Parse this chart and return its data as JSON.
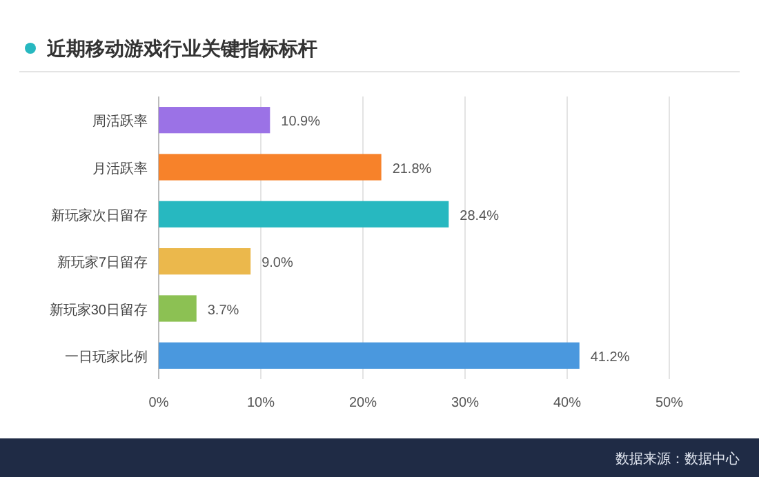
{
  "chart_data": {
    "type": "bar",
    "orientation": "horizontal",
    "title": "近期移动游戏行业关键指标标杆",
    "categories": [
      "周活跃率",
      "月活跃率",
      "新玩家次日留存",
      "新玩家7日留存",
      "新玩家30日留存",
      "一日玩家比例"
    ],
    "values": [
      10.9,
      21.8,
      28.4,
      9.0,
      3.7,
      41.2
    ],
    "value_labels": [
      "10.9%",
      "21.8%",
      "28.4%",
      "9.0%",
      "3.7%",
      "41.2%"
    ],
    "colors": [
      "#9b72e6",
      "#f7822a",
      "#27b8c0",
      "#ebb84c",
      "#8cc153",
      "#4a98de"
    ],
    "xlim": [
      0,
      50
    ],
    "xticks": [
      {
        "value": 0,
        "label": "0%"
      },
      {
        "value": 10,
        "label": "10%"
      },
      {
        "value": 20,
        "label": "20%"
      },
      {
        "value": 30,
        "label": "30%"
      },
      {
        "value": 40,
        "label": "40%"
      },
      {
        "value": 50,
        "label": "50%"
      }
    ],
    "grid": "x",
    "annotations": [
      "数据来源：数据中心"
    ]
  }
}
